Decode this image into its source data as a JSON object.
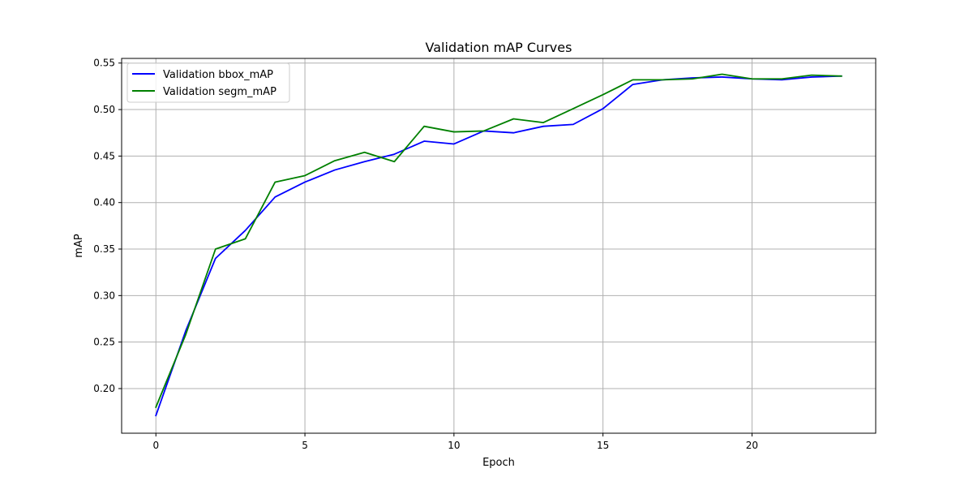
{
  "chart_data": {
    "type": "line",
    "title": "Validation mAP Curves",
    "xlabel": "Epoch",
    "ylabel": "mAP",
    "xlim": [
      -1.15,
      24.15
    ],
    "ylim": [
      0.152,
      0.555
    ],
    "xticks": [
      0,
      5,
      10,
      15,
      20
    ],
    "yticks": [
      0.2,
      0.25,
      0.3,
      0.35,
      0.4,
      0.45,
      0.5,
      0.55
    ],
    "grid": true,
    "legend_position": "top-left",
    "x": [
      0,
      1,
      2,
      3,
      4,
      5,
      6,
      7,
      8,
      9,
      10,
      11,
      12,
      13,
      14,
      15,
      16,
      17,
      18,
      19,
      20,
      21,
      22,
      23
    ],
    "series": [
      {
        "name": "Validation bbox_mAP",
        "color": "#0000ff",
        "values": [
          0.171,
          0.262,
          0.34,
          0.37,
          0.406,
          0.422,
          0.435,
          0.444,
          0.452,
          0.466,
          0.463,
          0.477,
          0.475,
          0.482,
          0.484,
          0.501,
          0.527,
          0.532,
          0.534,
          0.535,
          0.533,
          0.532,
          0.535,
          0.536
        ]
      },
      {
        "name": "Validation segm_mAP",
        "color": "#008000",
        "values": [
          0.18,
          0.258,
          0.35,
          0.361,
          0.422,
          0.429,
          0.445,
          0.454,
          0.444,
          0.482,
          0.476,
          0.477,
          0.49,
          0.486,
          0.501,
          0.516,
          0.532,
          0.532,
          0.533,
          0.538,
          0.533,
          0.533,
          0.537,
          0.536
        ]
      }
    ]
  }
}
